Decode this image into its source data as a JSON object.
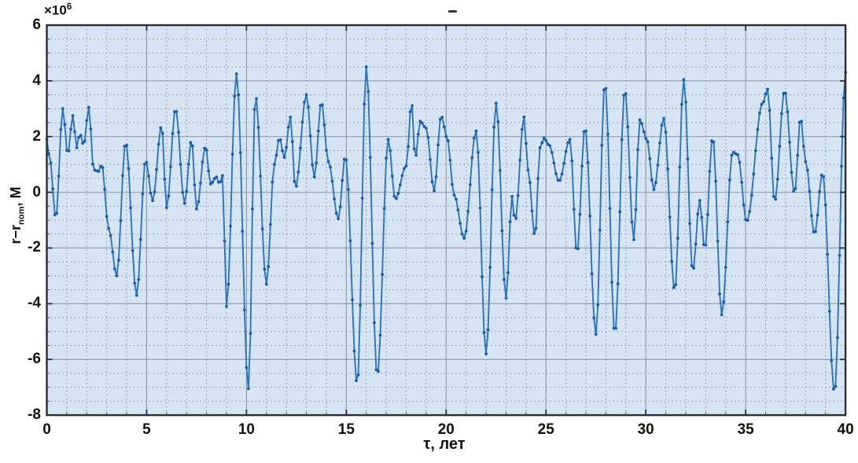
{
  "chart_data": {
    "type": "line",
    "title": "",
    "xlabel": "τ, лет",
    "ylabel": "r−r_nom, М",
    "ylabel_parts": {
      "pre": "r−r",
      "sub": "nom",
      "post": ", М"
    },
    "y_multiplier": {
      "base": "×10",
      "exp": "6"
    },
    "xlim": [
      0,
      40
    ],
    "ylim": [
      -8,
      6
    ],
    "xticks": [
      0,
      5,
      10,
      15,
      20,
      25,
      30,
      35,
      40
    ],
    "yticks": [
      6,
      4,
      2,
      0,
      -2,
      -4,
      -6,
      -8
    ],
    "minor_x_step": 1,
    "minor_y_step": 0.5,
    "grid": "major-solid, minor-dotted",
    "legend": "none",
    "units_note": "y values in units of 1e6 m",
    "sample_step": 0.1,
    "marker": "point",
    "colors": {
      "plot_bg": "#d7e4f3",
      "line": "#2e74bd",
      "marker": "#1d5ca8",
      "grid_minor": "#8494a4",
      "grid_major": "#8a97a0",
      "frame": "#2a2e33",
      "label": "#14110c"
    },
    "keypoints": [
      [
        0,
        1.9
      ],
      [
        0.15,
        1.2
      ],
      [
        0.45,
        -0.95
      ],
      [
        0.8,
        3.0
      ],
      [
        1.05,
        1.35
      ],
      [
        1.3,
        2.75
      ],
      [
        1.5,
        1.6
      ],
      [
        1.65,
        2.1
      ],
      [
        1.85,
        1.7
      ],
      [
        2.1,
        3.05
      ],
      [
        2.35,
        0.8
      ],
      [
        2.6,
        0.75
      ],
      [
        2.75,
        1.0
      ],
      [
        3.1,
        -1.3
      ],
      [
        3.5,
        -3.0
      ],
      [
        3.95,
        1.8
      ],
      [
        4.5,
        -3.7
      ],
      [
        4.95,
        1.15
      ],
      [
        5.3,
        -0.3
      ],
      [
        5.75,
        2.4
      ],
      [
        6.0,
        -0.55
      ],
      [
        6.45,
        3.0
      ],
      [
        6.9,
        -0.4
      ],
      [
        7.25,
        1.9
      ],
      [
        7.5,
        -0.6
      ],
      [
        7.95,
        1.65
      ],
      [
        8.2,
        0.3
      ],
      [
        8.5,
        0.55
      ],
      [
        8.65,
        0.3
      ],
      [
        8.8,
        0.6
      ],
      [
        9.0,
        -4.1
      ],
      [
        9.5,
        4.25
      ],
      [
        10.1,
        -7.05
      ],
      [
        10.45,
        3.5
      ],
      [
        11.0,
        -3.3
      ],
      [
        11.4,
        1.0
      ],
      [
        11.65,
        1.95
      ],
      [
        11.9,
        1.25
      ],
      [
        12.2,
        2.7
      ],
      [
        12.45,
        0.15
      ],
      [
        13.0,
        3.5
      ],
      [
        13.4,
        0.55
      ],
      [
        13.75,
        3.25
      ],
      [
        14.1,
        1.1
      ],
      [
        14.6,
        -0.95
      ],
      [
        14.95,
        1.3
      ],
      [
        15.55,
        -6.9
      ],
      [
        16.0,
        4.5
      ],
      [
        16.55,
        -6.6
      ],
      [
        17.1,
        1.9
      ],
      [
        17.45,
        -0.25
      ],
      [
        18.0,
        0.95
      ],
      [
        18.27,
        3.25
      ],
      [
        18.45,
        1.2
      ],
      [
        18.7,
        2.55
      ],
      [
        19.0,
        2.3
      ],
      [
        19.4,
        0.05
      ],
      [
        19.75,
        2.75
      ],
      [
        20.05,
        1.95
      ],
      [
        20.4,
        -0.1
      ],
      [
        20.9,
        -1.65
      ],
      [
        21.5,
        2.2
      ],
      [
        22.0,
        -5.8
      ],
      [
        22.5,
        3.2
      ],
      [
        23.0,
        -3.8
      ],
      [
        23.3,
        -0.15
      ],
      [
        23.45,
        -1.05
      ],
      [
        23.9,
        2.7
      ],
      [
        24.1,
        0.8
      ],
      [
        24.45,
        -1.6
      ],
      [
        24.7,
        1.6
      ],
      [
        24.9,
        1.95
      ],
      [
        25.15,
        1.7
      ],
      [
        25.65,
        0.4
      ],
      [
        26.2,
        1.9
      ],
      [
        26.55,
        -2.2
      ],
      [
        26.95,
        2.35
      ],
      [
        27.5,
        -5.1
      ],
      [
        27.95,
        3.95
      ],
      [
        28.45,
        -5.1
      ],
      [
        28.95,
        3.7
      ],
      [
        29.4,
        -1.7
      ],
      [
        29.7,
        2.6
      ],
      [
        30.05,
        1.9
      ],
      [
        30.4,
        0.1
      ],
      [
        30.9,
        2.65
      ],
      [
        31.45,
        -3.55
      ],
      [
        31.9,
        4.05
      ],
      [
        32.35,
        -2.85
      ],
      [
        32.7,
        -0.3
      ],
      [
        32.95,
        -2.05
      ],
      [
        33.35,
        2.0
      ],
      [
        33.8,
        -4.4
      ],
      [
        34.35,
        1.45
      ],
      [
        34.6,
        1.35
      ],
      [
        35.05,
        -1.05
      ],
      [
        35.85,
        3.2
      ],
      [
        36.1,
        3.7
      ],
      [
        36.45,
        -0.35
      ],
      [
        36.95,
        3.65
      ],
      [
        37.45,
        -0.05
      ],
      [
        37.75,
        2.7
      ],
      [
        38.0,
        1.1
      ],
      [
        38.45,
        -1.5
      ],
      [
        38.85,
        0.7
      ],
      [
        39.45,
        -7.2
      ],
      [
        40,
        4.3
      ]
    ]
  }
}
